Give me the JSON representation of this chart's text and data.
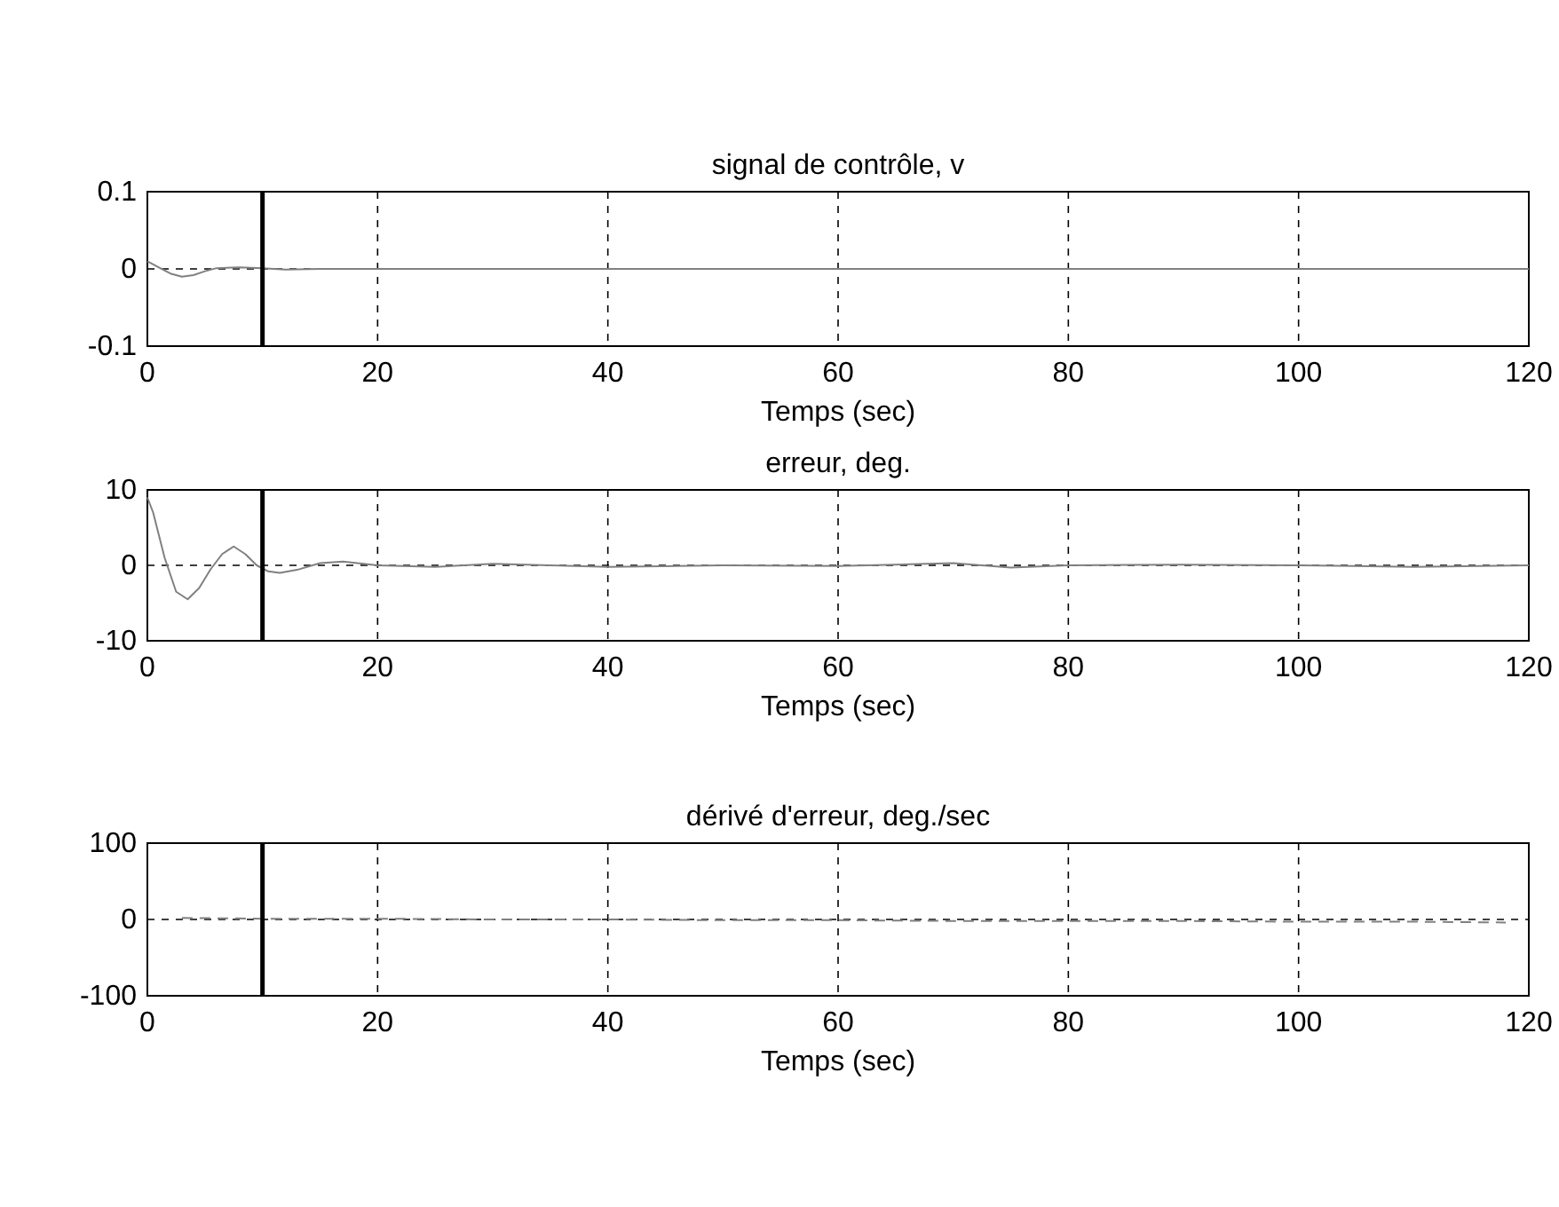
{
  "chart_data": [
    {
      "type": "line",
      "title": "signal de contrôle, v",
      "xlabel": "Temps (sec)",
      "xlim": [
        0,
        120
      ],
      "xticks": [
        0,
        20,
        40,
        60,
        80,
        100,
        120
      ],
      "ylim": [
        -0.1,
        0.1
      ],
      "yticks": [
        -0.1,
        0,
        0.1
      ],
      "grid": true,
      "ref_lines": [
        {
          "axis": "x",
          "value": 10,
          "color": "#000000"
        }
      ],
      "series": [
        {
          "color": "#808080",
          "line_style": "solid",
          "x": [
            0,
            1,
            2,
            3,
            4,
            5,
            6,
            8,
            10,
            12,
            15,
            20,
            40,
            60,
            80,
            100,
            120
          ],
          "values": [
            0.01,
            0.002,
            -0.006,
            -0.01,
            -0.008,
            -0.003,
            0.001,
            0.002,
            0.001,
            -0.001,
            0,
            0,
            0,
            0,
            0,
            0,
            0
          ]
        }
      ]
    },
    {
      "type": "line",
      "title": "erreur, deg.",
      "xlabel": "Temps (sec)",
      "xlim": [
        0,
        120
      ],
      "xticks": [
        0,
        20,
        40,
        60,
        80,
        100,
        120
      ],
      "ylim": [
        -10,
        10
      ],
      "yticks": [
        -10,
        0,
        10
      ],
      "grid": true,
      "ref_lines": [
        {
          "axis": "x",
          "value": 10,
          "color": "#000000"
        }
      ],
      "series": [
        {
          "color": "#808080",
          "line_style": "solid",
          "x": [
            0,
            0.5,
            1.5,
            2.5,
            3.5,
            4.5,
            5.5,
            6.5,
            7.5,
            8.5,
            9.5,
            10.5,
            11.5,
            13,
            15,
            17,
            20,
            25,
            30,
            35,
            40,
            50,
            60,
            70,
            75,
            80,
            90,
            100,
            110,
            120
          ],
          "values": [
            9,
            7,
            1,
            -3.5,
            -4.5,
            -3,
            -0.5,
            1.5,
            2.5,
            1.5,
            0,
            -0.8,
            -1,
            -0.6,
            0.3,
            0.5,
            0,
            -0.2,
            0.2,
            0,
            -0.2,
            0,
            -0.1,
            0.3,
            -0.3,
            0,
            0.1,
            0,
            -0.2,
            0
          ]
        }
      ]
    },
    {
      "type": "line",
      "title": "dérivé d'erreur, deg./sec",
      "xlabel": "Temps (sec)",
      "xlim": [
        0,
        120
      ],
      "xticks": [
        0,
        20,
        40,
        60,
        80,
        100,
        120
      ],
      "ylim": [
        -100,
        100
      ],
      "yticks": [
        -100,
        0,
        100
      ],
      "grid": true,
      "ref_lines": [
        {
          "axis": "x",
          "value": 10,
          "color": "#000000"
        }
      ],
      "series": [
        {
          "color": "#808080",
          "line_style": "dashed",
          "x": [
            3,
            10,
            20,
            30,
            40,
            50,
            60,
            70,
            80,
            90,
            100,
            110,
            118
          ],
          "values": [
            2,
            1,
            1,
            0,
            0,
            -1,
            -1,
            -2,
            -2,
            -2,
            -3,
            -3,
            -4
          ]
        }
      ]
    }
  ]
}
